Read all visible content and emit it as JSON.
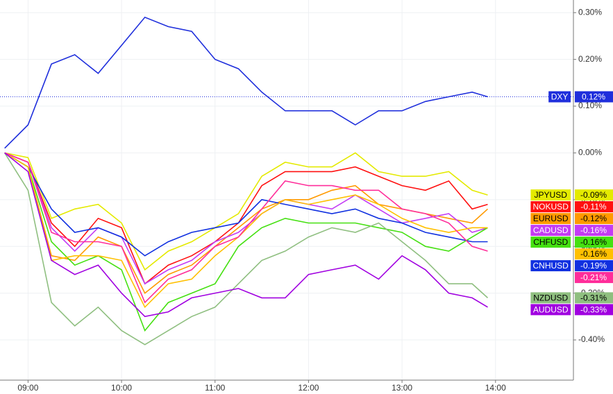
{
  "chart_data": {
    "type": "line",
    "x": [
      "08:45",
      "09:00",
      "09:15",
      "09:30",
      "09:45",
      "10:00",
      "10:15",
      "10:30",
      "10:45",
      "11:00",
      "11:15",
      "11:30",
      "11:45",
      "12:00",
      "12:15",
      "12:30",
      "12:45",
      "13:00",
      "13:15",
      "13:30",
      "13:45",
      "13:55"
    ],
    "xlim": [
      "08:42",
      "14:50"
    ],
    "xticks": [
      "09:00",
      "10:00",
      "11:00",
      "12:00",
      "13:00",
      "14:00"
    ],
    "ylim": [
      -0.486,
      0.327
    ],
    "yticks": [
      {
        "value": 0.3,
        "label": "0.30%"
      },
      {
        "value": 0.2,
        "label": "0.20%"
      },
      {
        "value": 0.1,
        "label": "0.10%"
      },
      {
        "value": 0,
        "label": "0.00%"
      },
      {
        "value": -0.1,
        "label": "-0.10%"
      },
      {
        "value": -0.2,
        "label": "-0.20%"
      },
      {
        "value": -0.3,
        "label": "-0.30%"
      },
      {
        "value": -0.4,
        "label": "-0.40%"
      }
    ],
    "grid": true,
    "series": [
      {
        "name": "DXY",
        "color": "#1f2fdc",
        "price_line": true,
        "last_label": "0.12%",
        "values": [
          0.01,
          0.06,
          0.19,
          0.21,
          0.17,
          0.23,
          0.29,
          0.27,
          0.26,
          0.2,
          0.18,
          0.13,
          0.09,
          0.09,
          0.09,
          0.06,
          0.09,
          0.09,
          0.11,
          0.12,
          0.13,
          0.12
        ]
      },
      {
        "name": "JPYUSD",
        "color": "#e4ea00",
        "last_label": "-0.09%",
        "values": [
          0,
          -0.01,
          -0.14,
          -0.12,
          -0.11,
          -0.15,
          -0.25,
          -0.21,
          -0.19,
          -0.16,
          -0.13,
          -0.05,
          -0.02,
          -0.03,
          -0.03,
          0,
          -0.04,
          -0.05,
          -0.05,
          -0.04,
          -0.08,
          -0.09
        ]
      },
      {
        "name": "NOKUSD",
        "color": "#ff1010",
        "last_label": "-0.11%",
        "values": [
          0,
          -0.02,
          -0.15,
          -0.2,
          -0.14,
          -0.16,
          -0.28,
          -0.24,
          -0.22,
          -0.19,
          -0.15,
          -0.07,
          -0.04,
          -0.04,
          -0.04,
          -0.03,
          -0.05,
          -0.07,
          -0.08,
          -0.06,
          -0.12,
          -0.11
        ]
      },
      {
        "name": "EURUSD",
        "color": "#ff9a00",
        "last_label": "-0.12%",
        "values": [
          0,
          -0.03,
          -0.22,
          -0.23,
          -0.18,
          -0.2,
          -0.3,
          -0.26,
          -0.24,
          -0.2,
          -0.16,
          -0.12,
          -0.1,
          -0.1,
          -0.08,
          -0.07,
          -0.11,
          -0.12,
          -0.13,
          -0.14,
          -0.15,
          -0.12
        ]
      },
      {
        "name": "CADUSD",
        "color": "#c43cf5",
        "last_label": "-0.16%",
        "values": [
          0,
          -0.02,
          -0.16,
          -0.21,
          -0.16,
          -0.18,
          -0.28,
          -0.25,
          -0.23,
          -0.19,
          -0.17,
          -0.13,
          -0.1,
          -0.11,
          -0.12,
          -0.09,
          -0.12,
          -0.15,
          -0.14,
          -0.13,
          -0.17,
          -0.16
        ]
      },
      {
        "name": "CNHUSD",
        "color": "#1030e0",
        "last_label": "-0.19%",
        "values": [
          0,
          -0.03,
          -0.12,
          -0.17,
          -0.16,
          -0.18,
          -0.22,
          -0.19,
          -0.17,
          -0.16,
          -0.15,
          -0.1,
          -0.11,
          -0.12,
          -0.13,
          -0.12,
          -0.14,
          -0.15,
          -0.17,
          -0.18,
          -0.19,
          -0.19
        ]
      },
      {
        "name": "CHFUSD",
        "color": "#44e010",
        "last_label": "-0.16%",
        "values": [
          0,
          -0.03,
          -0.19,
          -0.24,
          -0.22,
          -0.25,
          -0.38,
          -0.32,
          -0.3,
          -0.28,
          -0.2,
          -0.16,
          -0.14,
          -0.15,
          -0.15,
          -0.15,
          -0.16,
          -0.17,
          -0.2,
          -0.21,
          -0.18,
          -0.16
        ]
      },
      {
        "color": "#ffc000",
        "last_label": "-0.16%",
        "values": [
          0,
          -0.03,
          -0.23,
          -0.22,
          -0.22,
          -0.23,
          -0.33,
          -0.28,
          -0.27,
          -0.22,
          -0.18,
          -0.13,
          -0.1,
          -0.11,
          -0.1,
          -0.09,
          -0.11,
          -0.14,
          -0.16,
          -0.17,
          -0.16,
          -0.16
        ]
      },
      {
        "color": "#ff2d9a",
        "last_label": "-0.21%",
        "values": [
          0,
          -0.02,
          -0.17,
          -0.19,
          -0.19,
          -0.2,
          -0.32,
          -0.27,
          -0.25,
          -0.2,
          -0.18,
          -0.12,
          -0.06,
          -0.07,
          -0.07,
          -0.08,
          -0.08,
          -0.12,
          -0.13,
          -0.15,
          -0.2,
          -0.21
        ]
      },
      {
        "name": "NZDUSD",
        "color": "#8fbf80",
        "last_label": "-0.31%",
        "values": [
          0,
          -0.08,
          -0.32,
          -0.37,
          -0.33,
          -0.38,
          -0.41,
          -0.38,
          -0.35,
          -0.33,
          -0.28,
          -0.23,
          -0.21,
          -0.18,
          -0.16,
          -0.17,
          -0.15,
          -0.19,
          -0.23,
          -0.28,
          -0.28,
          -0.31
        ]
      },
      {
        "name": "AUDUSD",
        "color": "#a000e0",
        "last_label": "-0.33%",
        "values": [
          0,
          -0.04,
          -0.23,
          -0.26,
          -0.24,
          -0.3,
          -0.35,
          -0.34,
          -0.31,
          -0.3,
          -0.29,
          -0.31,
          -0.31,
          -0.26,
          -0.25,
          -0.24,
          -0.27,
          -0.22,
          -0.25,
          -0.3,
          -0.31,
          -0.33
        ]
      }
    ]
  }
}
